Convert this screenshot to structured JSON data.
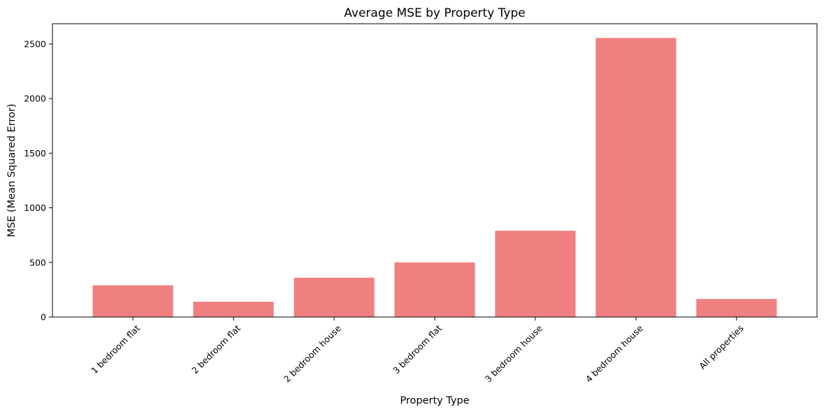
{
  "chart_data": {
    "type": "bar",
    "title": "Average MSE by Property Type",
    "xlabel": "Property Type",
    "ylabel": "MSE (Mean Squared Error)",
    "categories": [
      "1 bedroom flat",
      "2 bedroom flat",
      "2 bedroom house",
      "3 bedroom flat",
      "3 bedroom house",
      "4 bedroom house",
      "All properties"
    ],
    "values": [
      290,
      140,
      360,
      500,
      790,
      2555,
      165
    ],
    "ylim": [
      0,
      2685
    ],
    "yticks": [
      0,
      500,
      1000,
      1500,
      2000,
      2500
    ],
    "ytick_labels": [
      "0",
      "500",
      "1000",
      "1500",
      "2000",
      "2500"
    ],
    "bar_color": "#f08080",
    "grid": false,
    "legend": "none"
  }
}
